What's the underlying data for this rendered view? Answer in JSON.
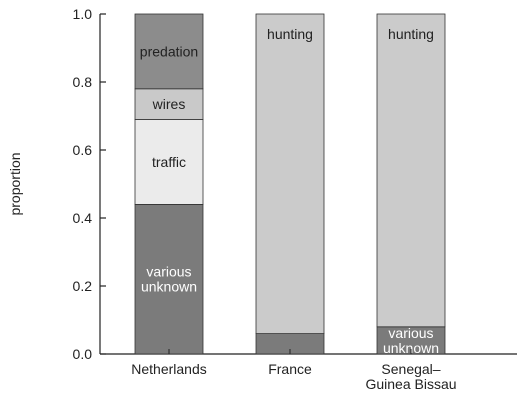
{
  "chart_data": {
    "type": "stacked_bar",
    "ylabel": "proportion",
    "categories": [
      "Netherlands",
      "France",
      "Senegal–\nGuinea Bissau"
    ],
    "series": [
      {
        "name": "various\nunknown",
        "color": "#7b7b7b",
        "text_color": "#ffffff",
        "values": [
          0.44,
          0.06,
          0.08
        ]
      },
      {
        "name": "traffic",
        "color": "#ebebeb",
        "text_color": "#222222",
        "values": [
          0.25,
          0,
          0
        ]
      },
      {
        "name": "wires",
        "color": "#c9c9c9",
        "text_color": "#222222",
        "values": [
          0.09,
          0,
          0
        ]
      },
      {
        "name": "predation",
        "color": "#8c8c8c",
        "text_color": "#222222",
        "values": [
          0.22,
          0,
          0
        ]
      },
      {
        "name": "hunting",
        "color": "#cbcbcb",
        "text_color": "#222222",
        "values": [
          0,
          0.94,
          0.92
        ]
      }
    ],
    "ylim": [
      0,
      1
    ],
    "yticks": [
      {
        "value": 0,
        "label": "0.0"
      },
      0.2,
      0.4,
      0.6,
      0.8,
      {
        "value": 1,
        "label": "1.0"
      }
    ]
  }
}
